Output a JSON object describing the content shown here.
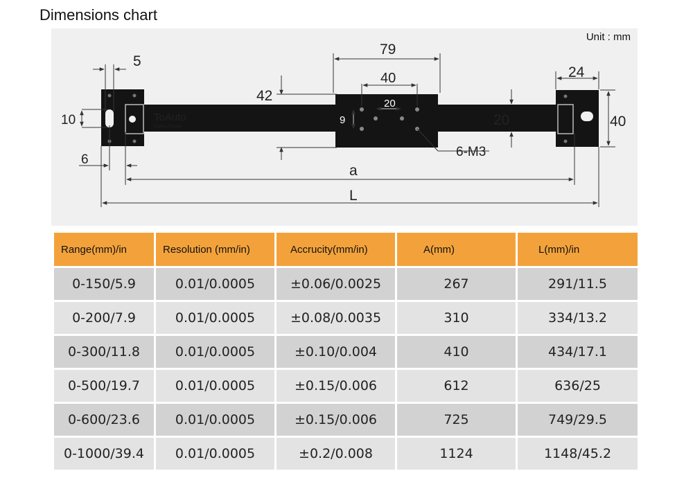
{
  "title": "Dimensions chart",
  "diagram": {
    "unit": "Unit : mm",
    "brand": "ToAuto",
    "brand_tagline": "Making Simple",
    "dims": {
      "d5": "5",
      "d79": "79",
      "d40a": "40",
      "d24": "24",
      "d42": "42",
      "d20a": "20",
      "d10": "10",
      "d9": "9",
      "d20b": "20",
      "d40b": "40",
      "d6m3": "6-M3",
      "d6": "6",
      "da": "a",
      "dL": "L"
    }
  },
  "table": {
    "headers": [
      "Range(mm)/in",
      "Resolution (mm/in)",
      "Accrucity(mm/in)",
      "A(mm)",
      "L(mm)/in"
    ],
    "rows": [
      [
        "0-150/5.9",
        "0.01/0.0005",
        "±0.06/0.0025",
        "267",
        "291/11.5"
      ],
      [
        "0-200/7.9",
        "0.01/0.0005",
        "±0.08/0.0035",
        "310",
        "334/13.2"
      ],
      [
        "0-300/11.8",
        "0.01/0.0005",
        "±0.10/0.004",
        "410",
        "434/17.1"
      ],
      [
        "0-500/19.7",
        "0.01/0.0005",
        "±0.15/0.006",
        "612",
        "636/25"
      ],
      [
        "0-600/23.6",
        "0.01/0.0005",
        "±0.15/0.006",
        "725",
        "749/29.5"
      ],
      [
        "0-1000/39.4",
        "0.01/0.0005",
        "±0.2/0.008",
        "1124",
        "1148/45.2"
      ]
    ]
  }
}
